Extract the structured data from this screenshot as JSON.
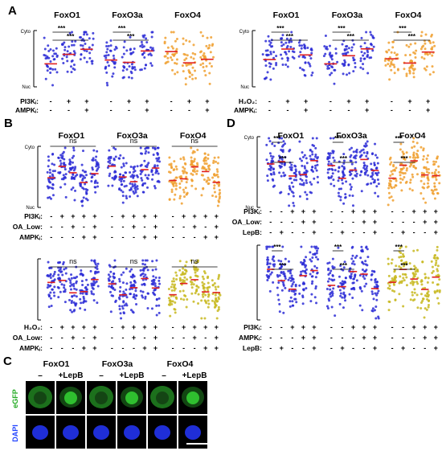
{
  "panels": [
    {
      "letter": "A",
      "groups": [
        {
          "titles": [
            "FoxO1",
            "FoxO3a",
            "FoxO4"
          ],
          "axis": {
            "top": "Cyto",
            "bottom": "Nuc"
          },
          "colors": [
            "#2b2bd6",
            "#2b2bd6",
            "#f0a030"
          ],
          "stars": [
            "***",
            "***",
            "***",
            "***"
          ],
          "rows": [
            {
              "label": "PI3Kᵢ:",
              "signs": [
                "-",
                "+",
                "+",
                "-",
                "+",
                "+",
                "-",
                "+",
                "+"
              ]
            },
            {
              "label": "AMPKᵢ:",
              "signs": [
                "-",
                "-",
                "+",
                "-",
                "-",
                "+",
                "-",
                "-",
                "+"
              ]
            }
          ]
        },
        {
          "titles": [
            "FoxO1",
            "FoxO3a",
            "FoxO4"
          ],
          "axis": {
            "top": "Cyto",
            "bottom": "Nuc"
          },
          "colors": [
            "#2b2bd6",
            "#2b2bd6",
            "#f0a030"
          ],
          "stars": [
            "***",
            "***",
            "***",
            "***",
            "***",
            "***"
          ],
          "rows": [
            {
              "label": "H₂O₂:",
              "signs": [
                "-",
                "+",
                "+",
                "-",
                "+",
                "+",
                "-",
                "+",
                "+"
              ]
            },
            {
              "label": "AMPKᵢ:",
              "signs": [
                "-",
                "-",
                "+",
                "-",
                "-",
                "+",
                "-",
                "-",
                "+"
              ]
            }
          ]
        }
      ]
    },
    {
      "letter": "B",
      "groups": [
        {
          "titles": [
            "FoxO1",
            "FoxO3a",
            "FoxO4"
          ],
          "axis": {
            "top": "Cyto",
            "bottom": "Nuc"
          },
          "colors": [
            "#2b2bd6",
            "#2b2bd6",
            "#f0a030"
          ],
          "ns": [
            "ns",
            "ns",
            "ns"
          ],
          "rows": [
            {
              "label": "PI3Kᵢ:",
              "signs": [
                "-",
                "+",
                "+",
                "+",
                "+",
                "-",
                "+",
                "+",
                "+",
                "+",
                "-",
                "+",
                "+",
                "+",
                "+"
              ]
            },
            {
              "label": "OA_Low:",
              "signs": [
                "-",
                "-",
                "+",
                "-",
                "+",
                "-",
                "-",
                "+",
                "-",
                "+",
                "-",
                "-",
                "+",
                "-",
                "+"
              ]
            },
            {
              "label": "AMPKᵢ:",
              "signs": [
                "-",
                "-",
                "-",
                "+",
                "+",
                "-",
                "-",
                "-",
                "+",
                "+",
                "-",
                "-",
                "-",
                "+",
                "+"
              ]
            }
          ]
        },
        {
          "titles": [],
          "axis": {
            "top": "",
            "bottom": ""
          },
          "colors": [
            "#2b2bd6",
            "#2b2bd6",
            "#c8b820"
          ],
          "ns": [
            "ns",
            "ns",
            "ns"
          ],
          "rows": [
            {
              "label": "H₂O₂:",
              "signs": [
                "-",
                "+",
                "+",
                "+",
                "+",
                "-",
                "+",
                "+",
                "+",
                "+",
                "-",
                "+",
                "+",
                "+",
                "+"
              ]
            },
            {
              "label": "OA_Low:",
              "signs": [
                "-",
                "-",
                "+",
                "-",
                "+",
                "-",
                "-",
                "+",
                "-",
                "+",
                "-",
                "-",
                "+",
                "-",
                "+"
              ]
            },
            {
              "label": "AMPKᵢ:",
              "signs": [
                "-",
                "-",
                "-",
                "+",
                "+",
                "-",
                "-",
                "-",
                "+",
                "+",
                "-",
                "-",
                "-",
                "+",
                "+"
              ]
            }
          ]
        }
      ]
    },
    {
      "letter": "D",
      "groups": [
        {
          "titles": [
            "FoxO1",
            "FoxO3a",
            "FoxO4"
          ],
          "axis": {
            "top": "Cyto",
            "bottom": "Nuc"
          },
          "colors": [
            "#2b2bd6",
            "#2b2bd6",
            "#f0a030"
          ],
          "stars": [
            "***",
            "***",
            "***",
            "***",
            "***",
            "***"
          ],
          "rows": [
            {
              "label": "PI3Kᵢ:",
              "signs": [
                "-",
                "-",
                "+",
                "+",
                "+",
                "-",
                "-",
                "+",
                "+",
                "+",
                "-",
                "-",
                "+",
                "+",
                "+"
              ]
            },
            {
              "label": "OA_Low:",
              "signs": [
                "-",
                "-",
                "-",
                "+",
                "+",
                "-",
                "-",
                "-",
                "+",
                "+",
                "-",
                "-",
                "-",
                "+",
                "+"
              ]
            },
            {
              "label": "LepB:",
              "signs": [
                "-",
                "+",
                "-",
                "-",
                "+",
                "-",
                "+",
                "-",
                "-",
                "+",
                "-",
                "+",
                "-",
                "-",
                "+"
              ]
            }
          ]
        },
        {
          "titles": [],
          "axis": {
            "top": "",
            "bottom": ""
          },
          "colors": [
            "#2b2bd6",
            "#2b2bd6",
            "#c8b820"
          ],
          "stars": [
            "***",
            "***",
            "***",
            "***",
            "***",
            "***"
          ],
          "rows": [
            {
              "label": "PI3Kᵢ:",
              "signs": [
                "-",
                "-",
                "+",
                "+",
                "+",
                "-",
                "-",
                "+",
                "+",
                "+",
                "-",
                "-",
                "+",
                "+",
                "+"
              ]
            },
            {
              "label": "AMPKᵢ:",
              "signs": [
                "-",
                "-",
                "-",
                "+",
                "+",
                "-",
                "-",
                "-",
                "+",
                "+",
                "-",
                "-",
                "-",
                "+",
                "+"
              ]
            },
            {
              "label": "LepB:",
              "signs": [
                "-",
                "+",
                "-",
                "-",
                "+",
                "-",
                "+",
                "-",
                "-",
                "+",
                "-",
                "+",
                "-",
                "-",
                "+"
              ]
            }
          ]
        }
      ]
    }
  ],
  "panel_c": {
    "letter": "C",
    "titles": [
      "FoxO1",
      "FoxO3a",
      "FoxO4"
    ],
    "conditions": [
      "–",
      "+LepB"
    ],
    "rows": [
      "eGFP",
      "DAPI"
    ],
    "colors": {
      "egfp": "#33cc33",
      "dapi": "#2233ee",
      "egfp_label": "#22aa22",
      "dapi_label": "#2244ff"
    }
  },
  "point_color_median": "#e02020"
}
